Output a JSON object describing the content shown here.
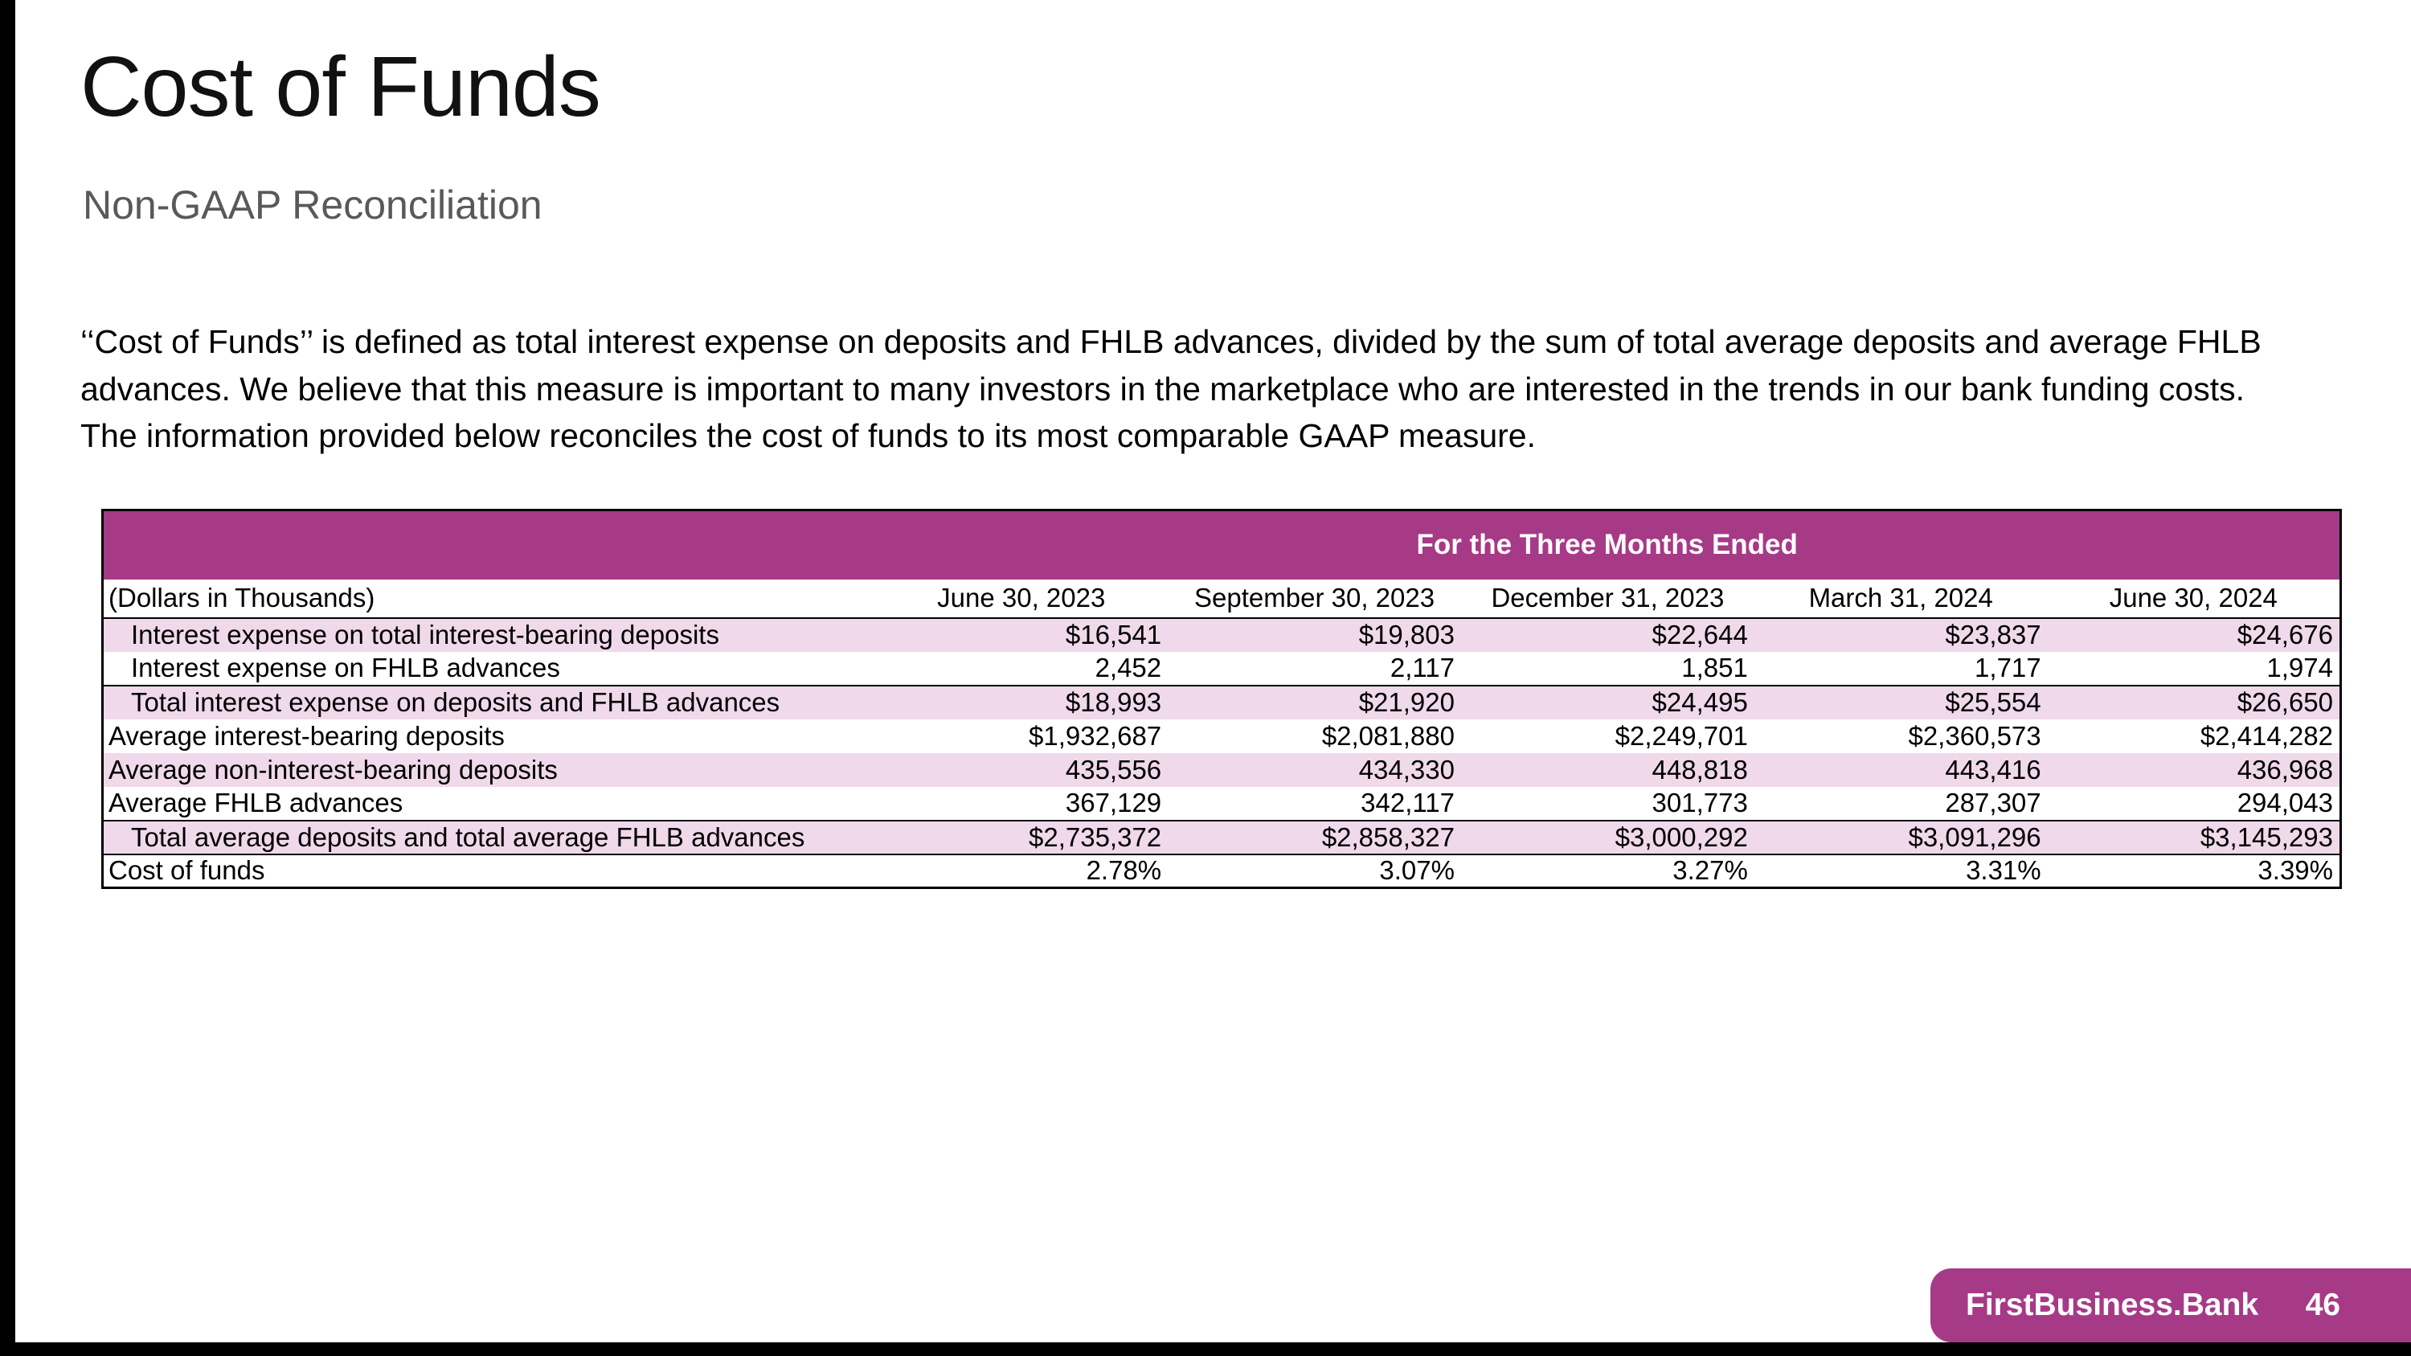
{
  "colors": {
    "accent": "#A63A87",
    "row_shade": "#EFD9EA",
    "subtitle_gray": "#595959",
    "edge_bar": "#000000"
  },
  "slide": {
    "title": "Cost of Funds",
    "subtitle": "Non-GAAP Reconciliation",
    "paragraph": "‘‘Cost of Funds’’ is defined as total interest expense on deposits and FHLB advances, divided by the sum of total average deposits and average FHLB advances. We believe that this measure is important to many investors in the marketplace who are interested in the trends in our bank funding costs. The information provided below reconciles the cost of funds to its most comparable GAAP measure."
  },
  "table": {
    "header_banner": "For the Three Months Ended",
    "unit_label": "(Dollars in Thousands)",
    "columns": [
      "June 30, 2023",
      "September 30, 2023",
      "December 31, 2023",
      "March 31, 2024",
      "June 30, 2024"
    ],
    "rows": [
      {
        "label": "Interest expense on total interest-bearing deposits",
        "indent": true,
        "shaded": true,
        "total": false,
        "values": [
          "$16,541",
          "$19,803",
          "$22,644",
          "$23,837",
          "$24,676"
        ]
      },
      {
        "label": "Interest expense on FHLB advances",
        "indent": true,
        "shaded": false,
        "total": false,
        "values": [
          "2,452",
          "2,117",
          "1,851",
          "1,717",
          "1,974"
        ]
      },
      {
        "label": "Total interest expense on deposits and FHLB advances",
        "indent": true,
        "shaded": true,
        "total": true,
        "values": [
          "$18,993",
          "$21,920",
          "$24,495",
          "$25,554",
          "$26,650"
        ]
      },
      {
        "label": "Average interest-bearing deposits",
        "indent": false,
        "shaded": false,
        "total": false,
        "values": [
          "$1,932,687",
          "$2,081,880",
          "$2,249,701",
          "$2,360,573",
          "$2,414,282"
        ]
      },
      {
        "label": "Average non-interest-bearing deposits",
        "indent": false,
        "shaded": true,
        "total": false,
        "values": [
          "435,556",
          "434,330",
          "448,818",
          "443,416",
          "436,968"
        ]
      },
      {
        "label": "Average FHLB advances",
        "indent": false,
        "shaded": false,
        "total": false,
        "values": [
          "367,129",
          "342,117",
          "301,773",
          "287,307",
          "294,043"
        ]
      },
      {
        "label": "Total average deposits and total average FHLB advances",
        "indent": true,
        "shaded": true,
        "total": true,
        "values": [
          "$2,735,372",
          "$2,858,327",
          "$3,000,292",
          "$3,091,296",
          "$3,145,293"
        ]
      },
      {
        "label": "Cost of funds",
        "indent": false,
        "shaded": false,
        "total": true,
        "values": [
          "2.78%",
          "3.07%",
          "3.27%",
          "3.31%",
          "3.39%"
        ]
      }
    ]
  },
  "footer": {
    "brand": "FirstBusiness.Bank",
    "page_number": "46"
  }
}
